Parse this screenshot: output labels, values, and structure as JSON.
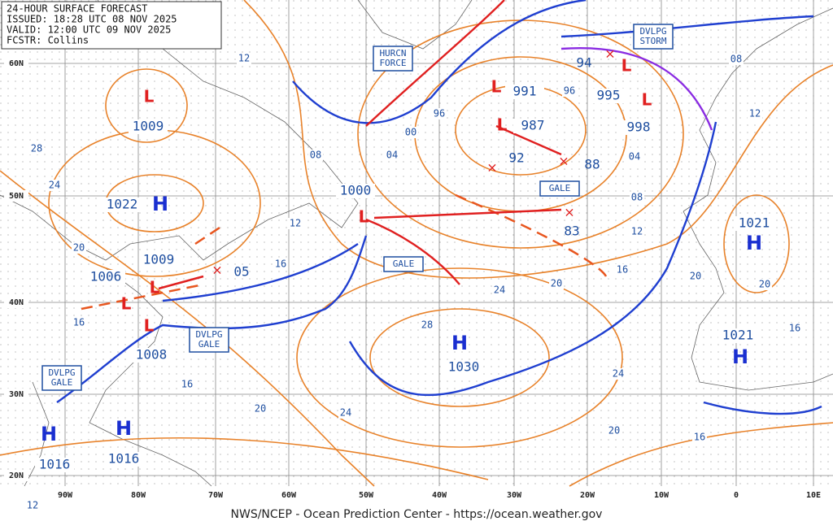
{
  "header": {
    "lines": [
      "24-HOUR SURFACE FORECAST",
      "ISSUED: 18:28 UTC 08 NOV 2025",
      "VALID: 12:00 UTC 09 NOV 2025",
      "FCSTR: Collins"
    ]
  },
  "lat_labels": [
    "60N",
    "50N",
    "40N",
    "30N",
    "20N"
  ],
  "lon_labels": [
    "90W",
    "80W",
    "70W",
    "60W",
    "50W",
    "40W",
    "30W",
    "20W",
    "10W",
    "0",
    "10E"
  ],
  "highs": [
    {
      "symbol": "H",
      "pressure": "1022"
    },
    {
      "symbol": "H",
      "pressure": "1021"
    },
    {
      "symbol": "H",
      "pressure": "1021"
    },
    {
      "symbol": "H",
      "pressure": "1030"
    },
    {
      "symbol": "H",
      "pressure": "1016"
    },
    {
      "symbol": "H",
      "pressure": "1016"
    }
  ],
  "lows": [
    {
      "symbol": "L",
      "pressure": "1009"
    },
    {
      "symbol": "L",
      "pressure": "1000"
    },
    {
      "symbol": "L",
      "pressure": "991"
    },
    {
      "symbol": "L",
      "pressure": "987"
    },
    {
      "symbol": "L",
      "pressure": "995"
    },
    {
      "symbol": "L",
      "pressure": "998"
    },
    {
      "symbol": "L",
      "pressure": "1009"
    },
    {
      "symbol": "L",
      "pressure": "1006"
    },
    {
      "symbol": "L",
      "pressure": "1008"
    }
  ],
  "forecast_positions": [
    "94",
    "92",
    "88",
    "83",
    "05"
  ],
  "isobar_labels": [
    "12",
    "28",
    "24",
    "20",
    "16",
    "08",
    "04",
    "00",
    "96",
    "96",
    "08",
    "12",
    "04",
    "08",
    "12",
    "16",
    "20",
    "24",
    "28",
    "12",
    "16",
    "24",
    "20",
    "16",
    "20",
    "20",
    "16",
    "16",
    "20",
    "24",
    "12"
  ],
  "warning_boxes": [
    {
      "lines": [
        "HURCN",
        "FORCE"
      ]
    },
    {
      "lines": [
        "DVLPG",
        "STORM"
      ]
    },
    {
      "lines": [
        "GALE"
      ]
    },
    {
      "lines": [
        "GALE"
      ]
    },
    {
      "lines": [
        "DVLPG",
        "GALE"
      ]
    },
    {
      "lines": [
        "DVLPG",
        "GALE"
      ]
    }
  ],
  "footer": "NWS/NCEP - Ocean Prediction Center - https://ocean.weather.gov"
}
